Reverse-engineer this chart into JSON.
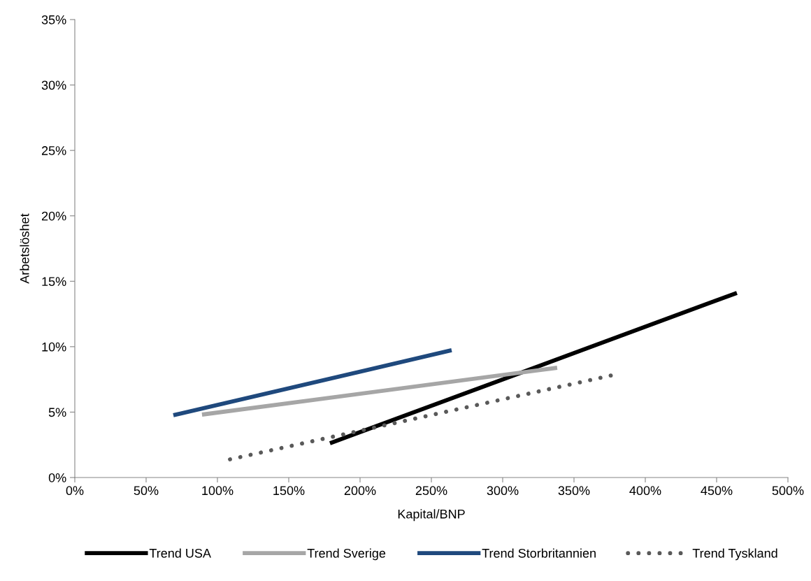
{
  "chart_data": {
    "type": "line",
    "xlabel": "Kapital/BNP",
    "ylabel": "Arbetslöshet",
    "series": [
      {
        "name": "Trend USA",
        "color": "#000000",
        "x": [
          178.9,
          464.2
        ],
        "values": [
          2.62,
          14.11
        ],
        "line_style": "solid"
      },
      {
        "name": "Trend Sverige",
        "color": "#a6a6a6",
        "x": [
          89.2,
          338.2
        ],
        "values": [
          4.81,
          8.39
        ],
        "line_style": "solid"
      },
      {
        "name": "Trend Storbritannien",
        "color": "#1f497d",
        "x": [
          69.1,
          264.2
        ],
        "values": [
          4.76,
          9.73
        ],
        "line_style": "solid"
      },
      {
        "name": "Trend Tyskland",
        "color": "#595959",
        "x": [
          108.8,
          376.0
        ],
        "values": [
          1.39,
          7.8
        ],
        "line_style": "dotted"
      }
    ],
    "xlim": [
      0,
      500
    ],
    "xticks": [
      {
        "value": 0,
        "label": "0%"
      },
      {
        "value": 50,
        "label": "50%"
      },
      {
        "value": 100,
        "label": "100%"
      },
      {
        "value": 150,
        "label": "150%"
      },
      {
        "value": 200,
        "label": "200%"
      },
      {
        "value": 250,
        "label": "250%"
      },
      {
        "value": 300,
        "label": "300%"
      },
      {
        "value": 350,
        "label": "350%"
      },
      {
        "value": 400,
        "label": "400%"
      },
      {
        "value": 450,
        "label": "450%"
      },
      {
        "value": 500,
        "label": "500%"
      }
    ],
    "ylim": [
      0,
      35
    ],
    "yticks": [
      {
        "value": 0,
        "label": "0%"
      },
      {
        "value": 5,
        "label": "5%"
      },
      {
        "value": 10,
        "label": "10%"
      },
      {
        "value": 15,
        "label": "15%"
      },
      {
        "value": 20,
        "label": "20%"
      },
      {
        "value": 25,
        "label": "25%"
      },
      {
        "value": 30,
        "label": "30%"
      },
      {
        "value": 35,
        "label": "35%"
      }
    ],
    "grid": false,
    "legend": "bottom",
    "marker": "none"
  }
}
